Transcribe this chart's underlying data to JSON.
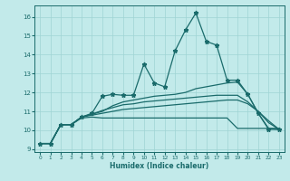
{
  "xlabel": "Humidex (Indice chaleur)",
  "background_color": "#c2eaea",
  "grid_color": "#9fd4d4",
  "line_color": "#1a6b6b",
  "xlim": [
    -0.5,
    23.5
  ],
  "ylim": [
    8.85,
    16.6
  ],
  "yticks": [
    9,
    10,
    11,
    12,
    13,
    14,
    15,
    16
  ],
  "xticks": [
    0,
    1,
    2,
    3,
    4,
    5,
    6,
    7,
    8,
    9,
    10,
    11,
    12,
    13,
    14,
    15,
    16,
    17,
    18,
    19,
    20,
    21,
    22,
    23
  ],
  "lines": [
    {
      "x": [
        0,
        1,
        2,
        3,
        4,
        5,
        6,
        7,
        8,
        9,
        10,
        11,
        12,
        13,
        14,
        15,
        16,
        17,
        18,
        19,
        20,
        21,
        22,
        23
      ],
      "y": [
        9.3,
        9.3,
        10.3,
        10.3,
        10.7,
        10.9,
        11.8,
        11.9,
        11.85,
        11.85,
        13.5,
        12.5,
        12.3,
        14.2,
        15.3,
        16.2,
        14.7,
        14.5,
        12.65,
        12.65,
        11.9,
        10.9,
        10.05,
        10.05
      ],
      "marker": "*",
      "linewidth": 0.9,
      "markersize": 3.5
    },
    {
      "x": [
        0,
        1,
        2,
        3,
        4,
        5,
        6,
        7,
        8,
        9,
        10,
        11,
        12,
        13,
        14,
        15,
        16,
        17,
        18,
        19,
        20,
        21,
        22,
        23
      ],
      "y": [
        9.3,
        9.3,
        10.3,
        10.3,
        10.65,
        10.7,
        10.65,
        10.65,
        10.65,
        10.65,
        10.65,
        10.65,
        10.65,
        10.65,
        10.65,
        10.65,
        10.65,
        10.65,
        10.65,
        10.1,
        10.1,
        10.1,
        10.1,
        10.1
      ],
      "marker": null,
      "linewidth": 0.9,
      "markersize": 0
    },
    {
      "x": [
        0,
        1,
        2,
        3,
        4,
        5,
        6,
        7,
        8,
        9,
        10,
        11,
        12,
        13,
        14,
        15,
        16,
        17,
        18,
        19,
        20,
        21,
        22,
        23
      ],
      "y": [
        9.3,
        9.3,
        10.3,
        10.3,
        10.7,
        10.85,
        11.0,
        11.3,
        11.5,
        11.6,
        11.7,
        11.8,
        11.85,
        11.9,
        12.0,
        12.2,
        12.3,
        12.4,
        12.5,
        12.55,
        11.9,
        10.9,
        10.1,
        10.05
      ],
      "marker": null,
      "linewidth": 0.9,
      "markersize": 0
    },
    {
      "x": [
        0,
        1,
        2,
        3,
        4,
        5,
        6,
        7,
        8,
        9,
        10,
        11,
        12,
        13,
        14,
        15,
        16,
        17,
        18,
        19,
        20,
        21,
        22,
        23
      ],
      "y": [
        9.3,
        9.3,
        10.3,
        10.3,
        10.7,
        10.85,
        11.05,
        11.2,
        11.35,
        11.4,
        11.5,
        11.55,
        11.6,
        11.65,
        11.7,
        11.75,
        11.8,
        11.85,
        11.85,
        11.85,
        11.5,
        11.0,
        10.5,
        10.05
      ],
      "marker": null,
      "linewidth": 0.9,
      "markersize": 0
    },
    {
      "x": [
        0,
        1,
        2,
        3,
        4,
        5,
        6,
        7,
        8,
        9,
        10,
        11,
        12,
        13,
        14,
        15,
        16,
        17,
        18,
        19,
        20,
        21,
        22,
        23
      ],
      "y": [
        9.3,
        9.3,
        10.3,
        10.3,
        10.7,
        10.8,
        10.9,
        11.0,
        11.1,
        11.15,
        11.2,
        11.25,
        11.3,
        11.35,
        11.4,
        11.45,
        11.5,
        11.55,
        11.6,
        11.6,
        11.4,
        11.0,
        10.4,
        10.05
      ],
      "marker": null,
      "linewidth": 0.9,
      "markersize": 0
    }
  ]
}
